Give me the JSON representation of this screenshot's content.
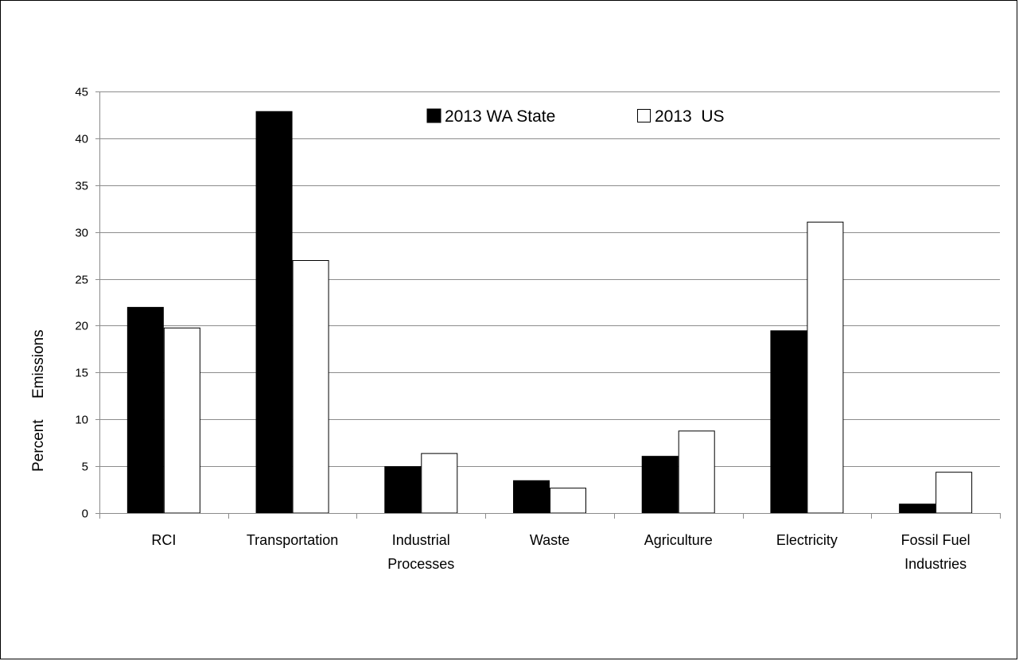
{
  "chart_data": {
    "type": "bar",
    "categories": [
      [
        "RCI"
      ],
      [
        "Transportation"
      ],
      [
        "Industrial",
        "Processes"
      ],
      [
        "Waste"
      ],
      [
        "Agriculture"
      ],
      [
        "Electricity"
      ],
      [
        "Fossil Fuel",
        "Industries"
      ]
    ],
    "series": [
      {
        "name": "2013 WA State",
        "color": "#000000",
        "values": [
          22,
          42.9,
          5,
          3.5,
          6.1,
          19.5,
          1
        ]
      },
      {
        "name": "2013  US",
        "color": "#ffffff",
        "values": [
          19.8,
          27,
          6.4,
          2.7,
          8.8,
          31.1,
          4.4
        ]
      }
    ],
    "ylabel_words": [
      "Percent",
      "Emissions"
    ],
    "ylim": [
      0,
      45
    ],
    "yticks": [
      0,
      5,
      10,
      15,
      20,
      25,
      30,
      35,
      40,
      45
    ],
    "grid": true,
    "legend_position": "top-center"
  }
}
